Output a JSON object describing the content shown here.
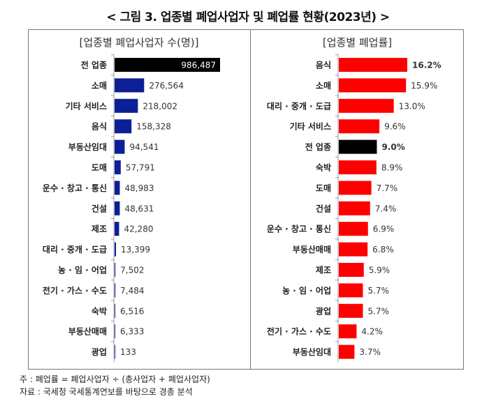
{
  "title": "< 그림 3. 업종별 폐업사업자 및 폐업률 현황(2023년) >",
  "chart_data": [
    {
      "type": "bar",
      "orientation": "horizontal",
      "title": "[업종별 폐업사업자 수(명)]",
      "categories": [
        "전 업종",
        "소매",
        "기타 서비스",
        "음식",
        "부동산임대",
        "도매",
        "운수 · 창고 · 통신",
        "건설",
        "제조",
        "대리 · 중개 · 도급",
        "농 · 임 · 어업",
        "전기 · 가스 · 수도",
        "숙박",
        "부동산매매",
        "광업"
      ],
      "values": [
        986487,
        276564,
        218002,
        158328,
        94541,
        57791,
        48983,
        48631,
        42280,
        13399,
        7502,
        7484,
        6516,
        6333,
        133
      ],
      "labels": [
        "986,487",
        "276,564",
        "218,002",
        "158,328",
        "94,541",
        "57,791",
        "48,983",
        "48,631",
        "42,280",
        "13,399",
        "7,502",
        "7,484",
        "6,516",
        "6,333",
        "133"
      ],
      "highlight": "전 업종",
      "colors": {
        "bar": "#0d1f96",
        "highlight": "#000000"
      }
    },
    {
      "type": "bar",
      "orientation": "horizontal",
      "title": "[업종별 폐업률]",
      "categories": [
        "음식",
        "소매",
        "대리 · 중개 · 도급",
        "기타 서비스",
        "전 업종",
        "숙박",
        "도매",
        "건설",
        "운수 · 창고 · 통신",
        "부동산매매",
        "제조",
        "농 · 임 · 어업",
        "광업",
        "전기 · 가스 · 수도",
        "부동산임대"
      ],
      "values": [
        16.2,
        15.9,
        13.0,
        9.6,
        9.0,
        8.9,
        7.7,
        7.4,
        6.9,
        6.8,
        5.9,
        5.7,
        5.7,
        4.2,
        3.7
      ],
      "labels": [
        "16.2%",
        "15.9%",
        "13.0%",
        "9.6%",
        "9.0%",
        "8.9%",
        "7.7%",
        "7.4%",
        "6.9%",
        "6.8%",
        "5.9%",
        "5.7%",
        "5.7%",
        "4.2%",
        "3.7%"
      ],
      "highlight": "전 업종",
      "colors": {
        "bar": "#ff0000",
        "highlight": "#000000"
      }
    }
  ],
  "notes": {
    "note": "주 : 폐업률 = 폐업사업자 ÷ (총사업자 + 폐업사업자)",
    "source": "자료 : 국세청 국세통계연보를 바탕으로 경총 분석"
  }
}
